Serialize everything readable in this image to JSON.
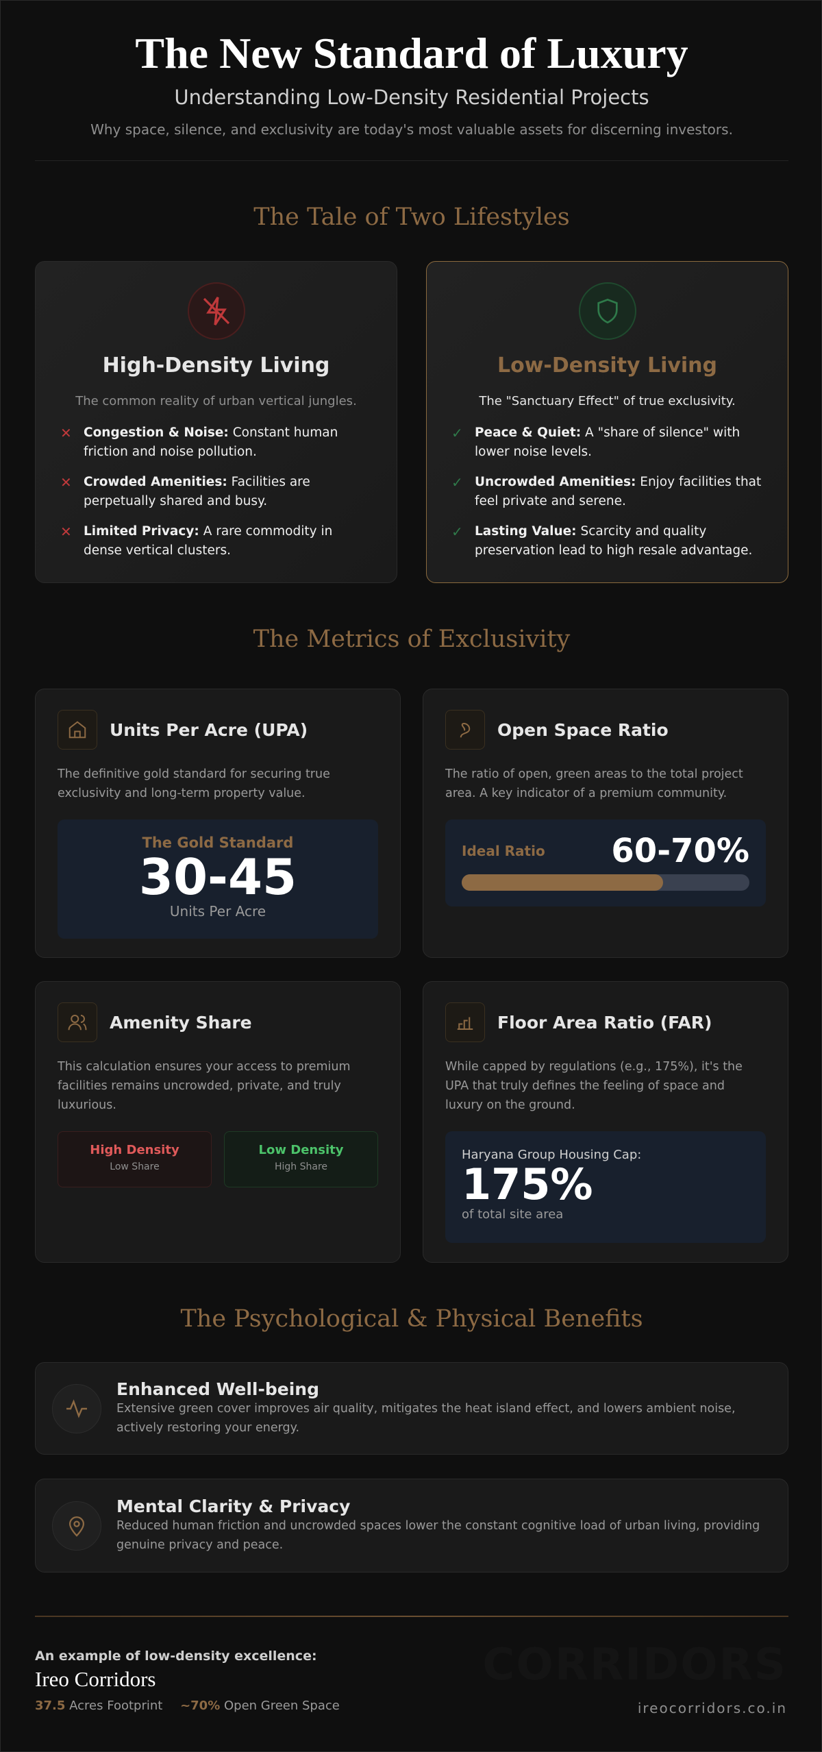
{
  "header": {
    "title": "The New Standard of Luxury",
    "subtitle": "Understanding Low-Density Residential Projects",
    "tagline": "Why space, silence, and exclusivity are today's most valuable assets for discerning investors."
  },
  "lifestyles": {
    "heading": "The Tale of Two Lifestyles",
    "high": {
      "title": "High-Density Living",
      "subtitle": "The common reality of urban vertical jungles.",
      "items": [
        {
          "label": "Congestion & Noise:",
          "text": "Constant human friction and noise pollution."
        },
        {
          "label": "Crowded Amenities:",
          "text": "Facilities are perpetually shared and busy."
        },
        {
          "label": "Limited Privacy:",
          "text": "A rare commodity in dense vertical clusters."
        }
      ]
    },
    "low": {
      "title": "Low-Density Living",
      "subtitle": "The \"Sanctuary Effect\" of true exclusivity.",
      "items": [
        {
          "label": "Peace & Quiet:",
          "text": "A \"share of silence\" with lower noise levels."
        },
        {
          "label": "Uncrowded Amenities:",
          "text": "Enjoy facilities that feel private and serene."
        },
        {
          "label": "Lasting Value:",
          "text": "Scarcity and quality preservation lead to high resale advantage."
        }
      ]
    }
  },
  "metrics": {
    "heading": "The Metrics of Exclusivity",
    "upa": {
      "title": "Units Per Acre (UPA)",
      "description": "The definitive gold standard for securing true exclusivity and long-term property value.",
      "badge_label": "The Gold Standard",
      "badge_value": "30-45",
      "badge_unit": "Units Per Acre"
    },
    "open_space": {
      "title": "Open Space Ratio",
      "description": "The ratio of open, green areas to the total project area. A key indicator of a premium community.",
      "ratio_label": "Ideal Ratio",
      "ratio_value": "60-70%"
    },
    "amenity": {
      "title": "Amenity Share",
      "description": "This calculation ensures your access to premium facilities remains uncrowded, private, and truly luxurious.",
      "high": {
        "label": "High Density",
        "sub": "Low Share"
      },
      "low": {
        "label": "Low Density",
        "sub": "High Share"
      }
    },
    "far": {
      "title": "Floor Area Ratio (FAR)",
      "description": "While capped by regulations (e.g., 175%), it's the UPA that truly defines the feeling of space and luxury on the ground.",
      "cap_label": "Haryana Group Housing Cap:",
      "cap_value": "175%",
      "cap_unit": "of total site area"
    }
  },
  "benefits": {
    "heading": "The Psychological & Physical Benefits",
    "items": [
      {
        "title": "Enhanced Well-being",
        "text": "Extensive green cover improves air quality, mitigates the heat island effect, and lowers ambient noise, actively restoring your energy."
      },
      {
        "title": "Mental Clarity & Privacy",
        "text": "Reduced human friction and uncrowded spaces lower the constant cognitive load of urban living, providing genuine privacy and peace."
      }
    ]
  },
  "footer": {
    "intro": "An example of low-density excellence:",
    "name": "Ireo Corridors",
    "stats": [
      {
        "value": "37.5",
        "label": "Acres Footprint"
      },
      {
        "value": "~70%",
        "label": "Open Green Space"
      }
    ],
    "url": "ireocorridors.co.in",
    "watermark": "CORRIDORS"
  }
}
